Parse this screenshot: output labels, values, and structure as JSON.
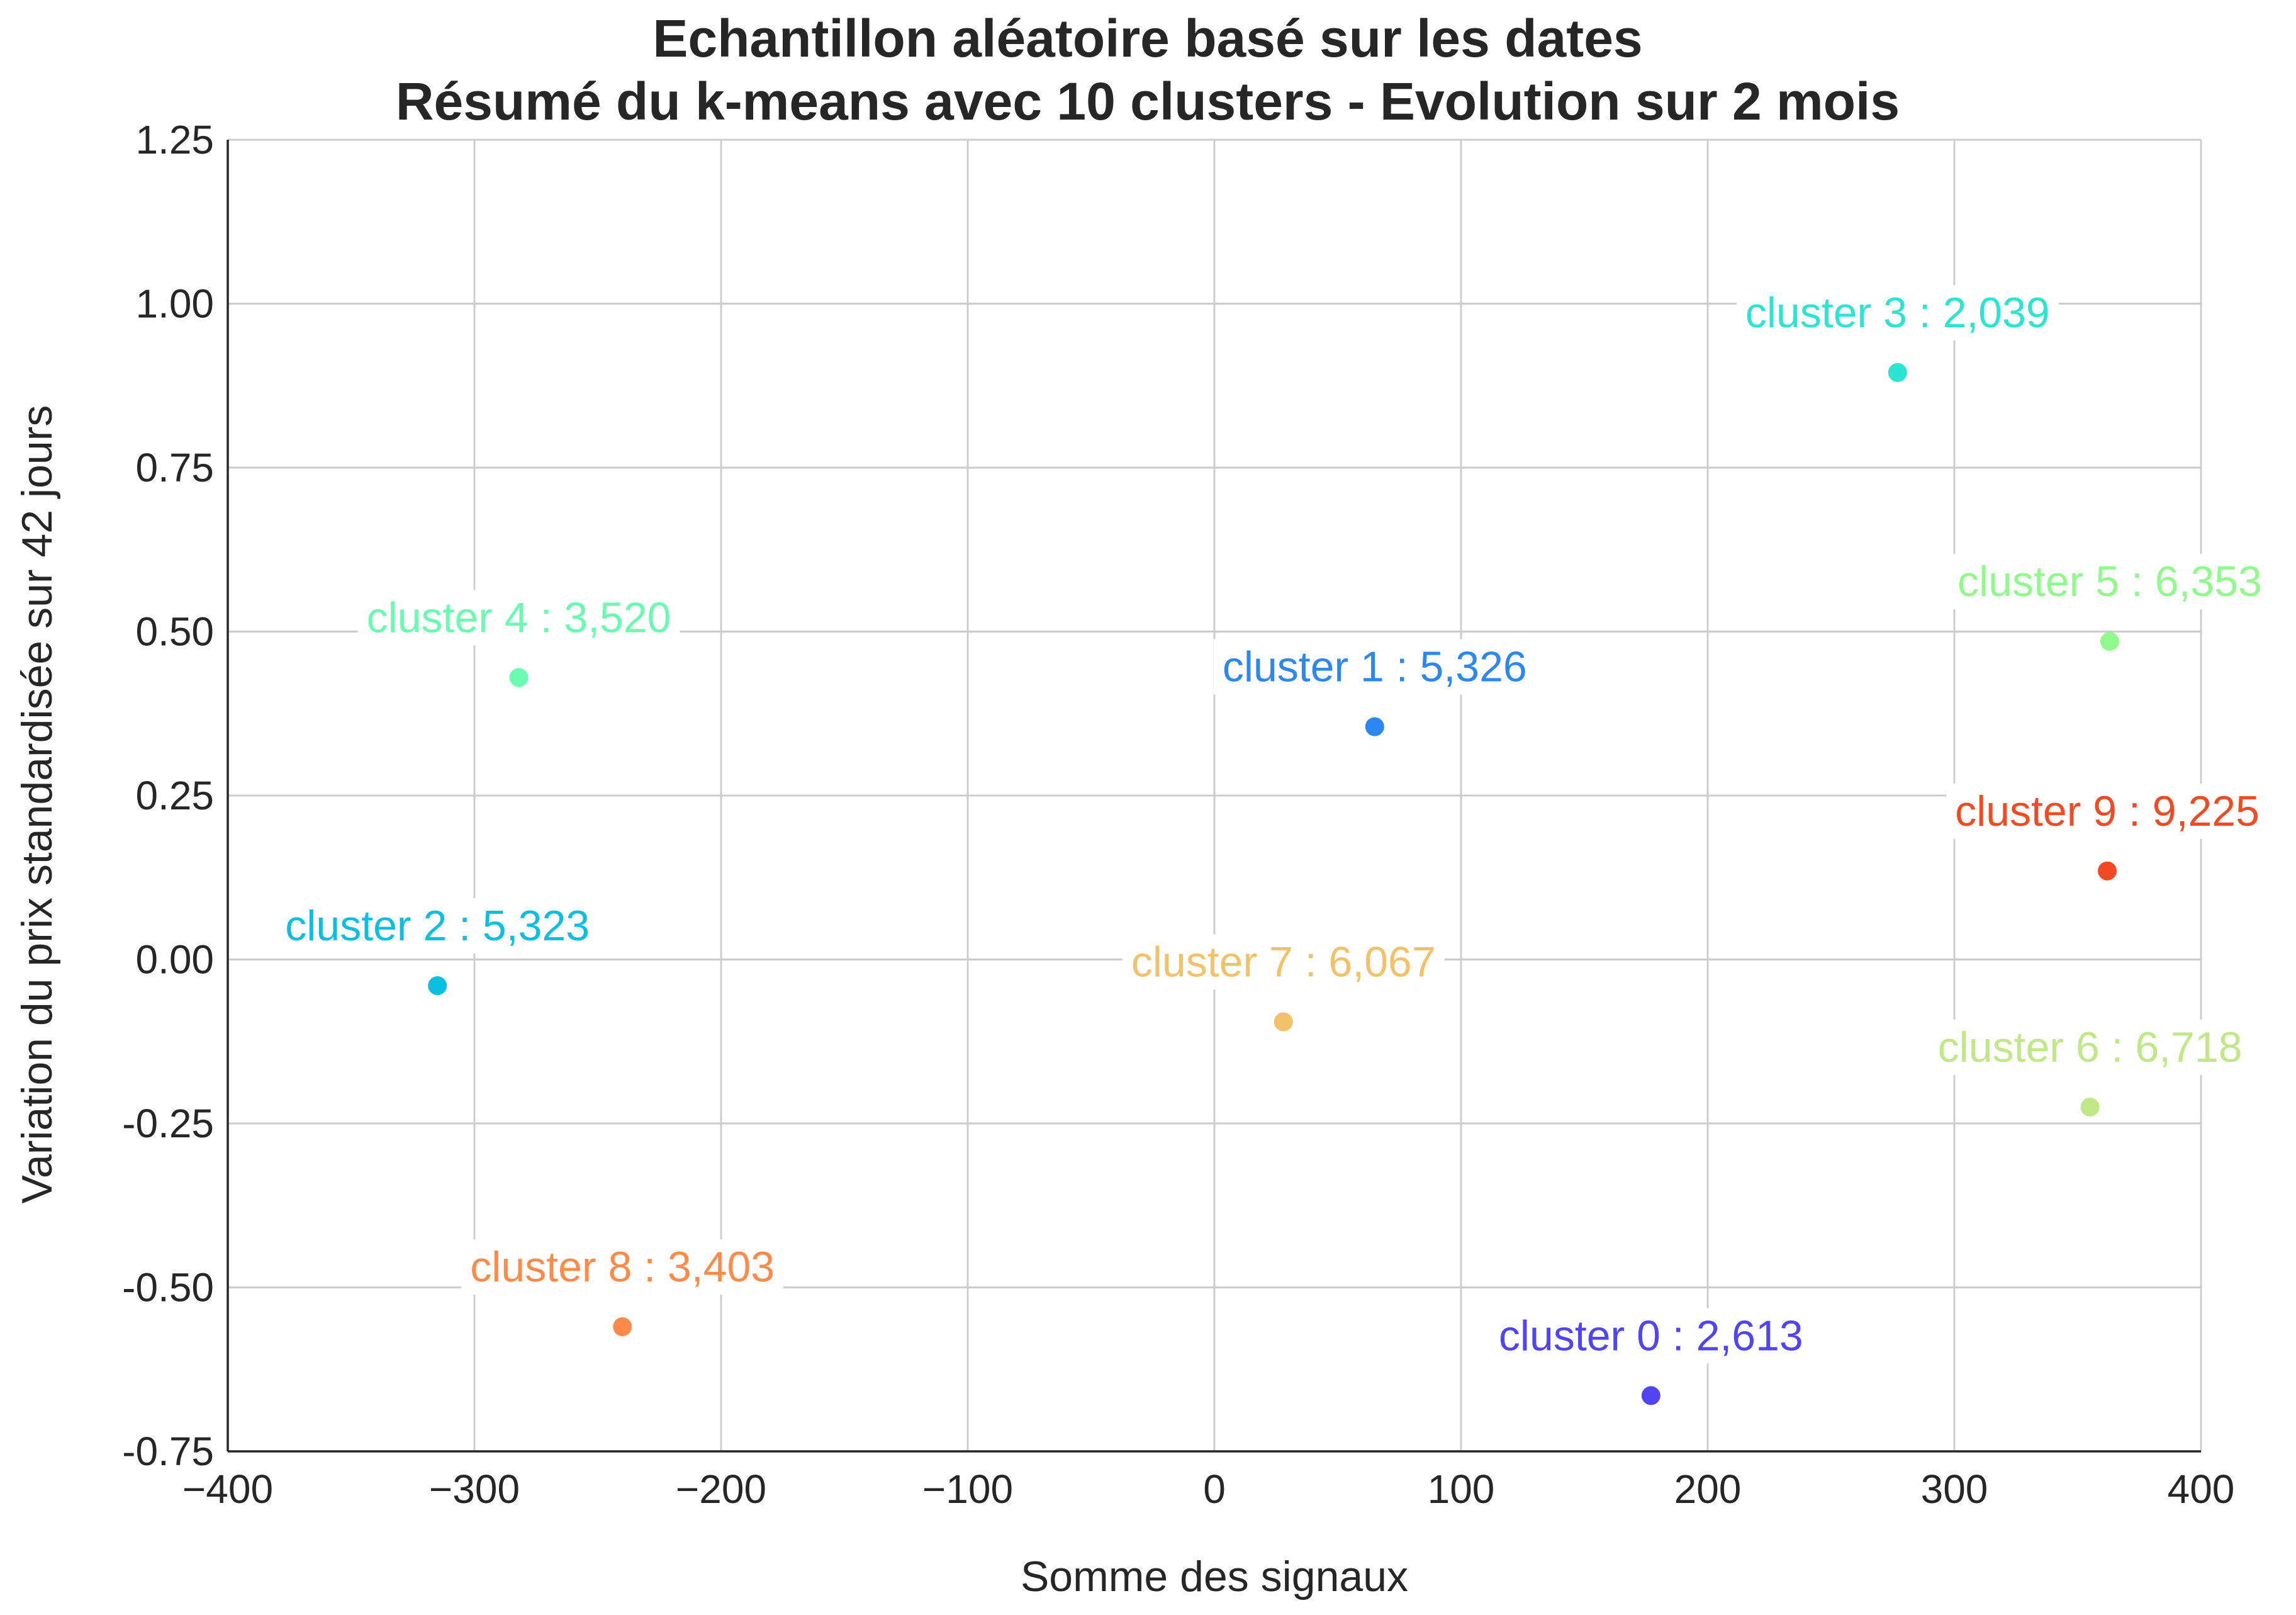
{
  "chart_data": {
    "type": "scatter",
    "title": [
      "Echantillon aléatoire basé sur les dates",
      "Résumé du k-means avec 10 clusters - Evolution sur 2 mois"
    ],
    "xlabel": "Somme des signaux",
    "ylabel": "Variation du prix standardisée sur 42 jours",
    "xlim": [
      -400,
      400
    ],
    "ylim": [
      -0.75,
      1.25
    ],
    "xticks": [
      -400,
      -300,
      -200,
      -100,
      0,
      100,
      200,
      300,
      400
    ],
    "xtick_labels": [
      "−400",
      "−300",
      "−200",
      "−100",
      "0",
      "100",
      "200",
      "300",
      "400"
    ],
    "yticks": [
      1.25,
      1.0,
      0.75,
      0.5,
      0.25,
      0.0,
      -0.25,
      -0.5,
      -0.75
    ],
    "ytick_labels": [
      "1.25",
      "1.00",
      "0.75",
      "0.50",
      "0.25",
      "0.00",
      "-0.25",
      "-0.50",
      "-0.75"
    ],
    "grid": true,
    "points": [
      {
        "label": "cluster 0 : 2,613",
        "x": 177,
        "y": -0.665,
        "color": "#5044f4"
      },
      {
        "label": "cluster 1 : 5,326",
        "x": 65,
        "y": 0.355,
        "color": "#2c87f0"
      },
      {
        "label": "cluster 2 : 5,323",
        "x": -315,
        "y": -0.04,
        "color": "#0bbfe0"
      },
      {
        "label": "cluster 3 : 2,039",
        "x": 277,
        "y": 0.895,
        "color": "#2ce4d2"
      },
      {
        "label": "cluster 4 : 3,520",
        "x": -282,
        "y": 0.43,
        "color": "#6afab0"
      },
      {
        "label": "cluster 5 : 6,353",
        "x": 363,
        "y": 0.485,
        "color": "#90fa8c"
      },
      {
        "label": "cluster 6 : 6,718",
        "x": 355,
        "y": -0.225,
        "color": "#c0e887"
      },
      {
        "label": "cluster 7 : 6,067",
        "x": 28,
        "y": -0.095,
        "color": "#f2c26b"
      },
      {
        "label": "cluster 8 : 3,403",
        "x": -240,
        "y": -0.56,
        "color": "#ff8a4a"
      },
      {
        "label": "cluster 9 : 9,225",
        "x": 362,
        "y": 0.135,
        "color": "#f44a24"
      }
    ]
  }
}
